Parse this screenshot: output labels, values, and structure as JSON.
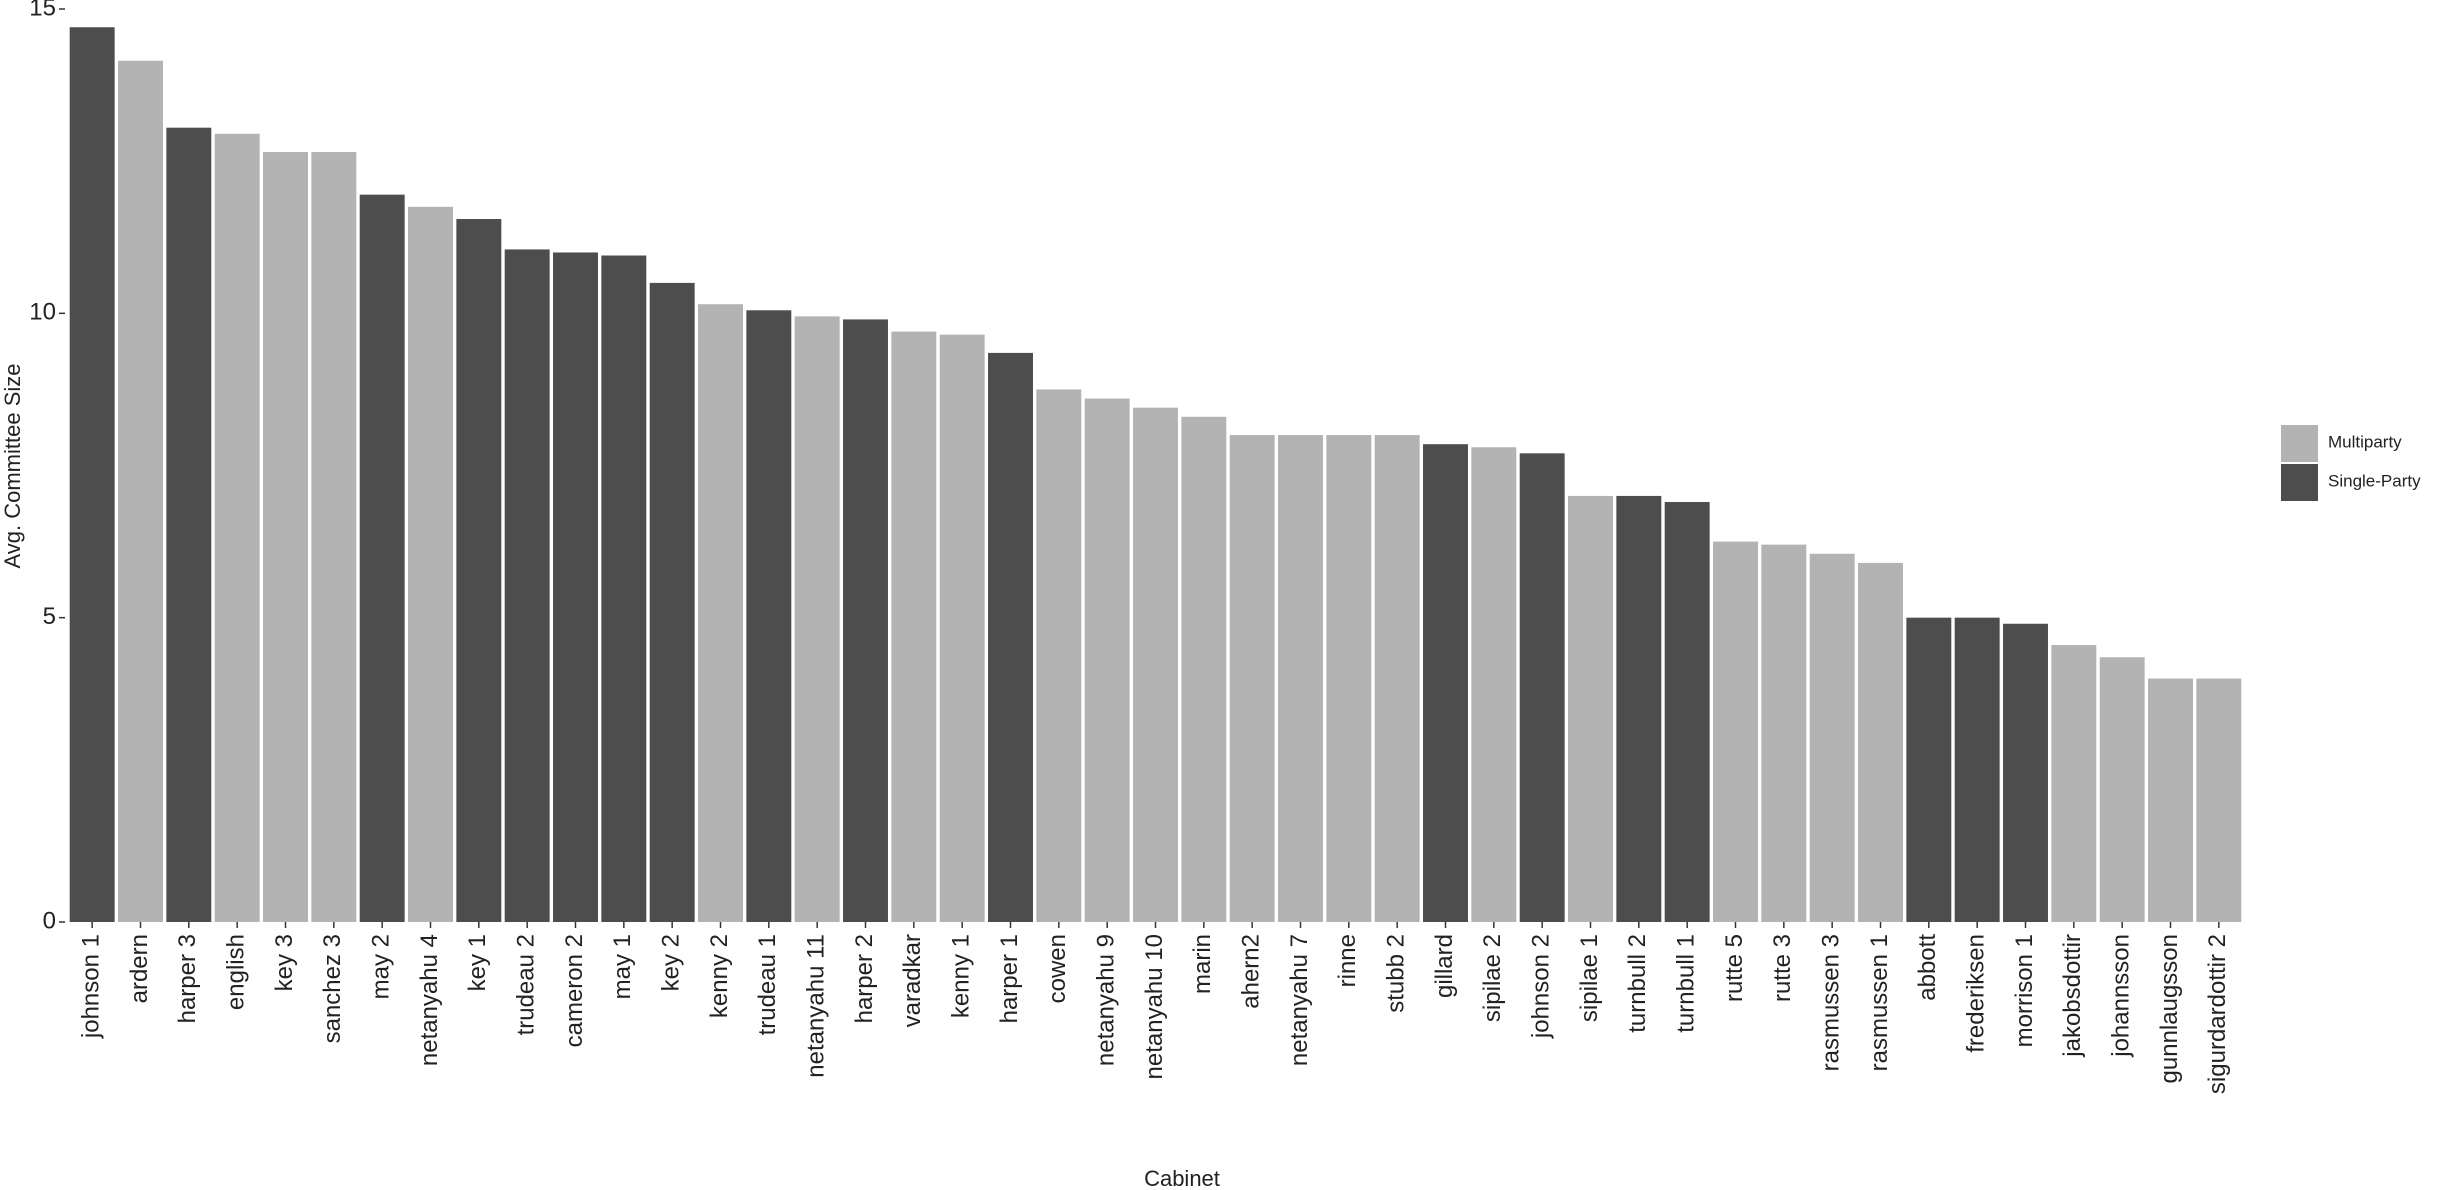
{
  "chart_data": {
    "type": "bar",
    "x_label": "Cabinet",
    "y_label": "Avg. Committee Size",
    "categories": [
      "johnson 1",
      "ardern",
      "harper 3",
      "english",
      "key 3",
      "sanchez 3",
      "may 2",
      "netanyahu 4",
      "key 1",
      "trudeau 2",
      "cameron 2",
      "may 1",
      "key 2",
      "kenny 2",
      "trudeau 1",
      "netanyahu 11",
      "harper 2",
      "varadkar",
      "kenny 1",
      "harper 1",
      "cowen",
      "netanyahu 9",
      "netanyahu 10",
      "marin",
      "ahern2",
      "netanyahu 7",
      "rinne",
      "stubb 2",
      "gillard",
      "sipilae 2",
      "johnson 2",
      "sipilae 1",
      "turnbull 2",
      "turnbull 1",
      "rutte 5",
      "rutte 3",
      "rasmussen 3",
      "rasmussen 1",
      "abbott",
      "frederiksen",
      "morrison 1",
      "jakobsdottir",
      "johannsson",
      "gunnlaugsson",
      "sigurdardottir 2"
    ],
    "series": [
      {
        "name": "Multiparty",
        "color": "#b3b3b3",
        "values": [
          null,
          14.15,
          null,
          12.95,
          12.65,
          12.65,
          null,
          11.75,
          null,
          null,
          null,
          null,
          null,
          10.15,
          null,
          9.95,
          null,
          9.7,
          9.65,
          null,
          8.75,
          8.6,
          8.45,
          8.3,
          8,
          8,
          8,
          8,
          null,
          7.8,
          null,
          7,
          null,
          null,
          6.25,
          6.2,
          6.05,
          5.9,
          null,
          null,
          null,
          4.55,
          4.35,
          4,
          4
        ]
      },
      {
        "name": "Single-Party",
        "color": "#4d4d4d",
        "values": [
          14.7,
          null,
          13.05,
          null,
          null,
          null,
          11.95,
          null,
          11.55,
          11.05,
          11,
          10.95,
          10.5,
          null,
          10.05,
          null,
          9.9,
          null,
          null,
          9.35,
          null,
          null,
          null,
          null,
          null,
          null,
          null,
          null,
          7.85,
          null,
          7.7,
          null,
          7,
          6.9,
          null,
          null,
          null,
          null,
          5,
          5,
          4.9,
          null,
          null,
          null,
          null
        ]
      }
    ],
    "ylim": [
      0,
      15
    ],
    "yticks": [
      0,
      5,
      10,
      15
    ],
    "grid": false,
    "legend": "right"
  }
}
